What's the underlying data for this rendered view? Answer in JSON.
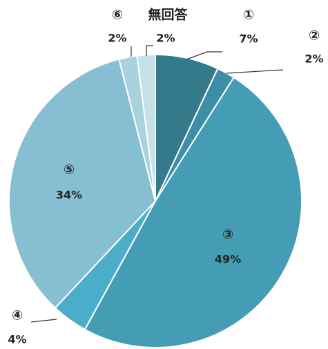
{
  "chart_data": {
    "type": "pie",
    "categories": [
      "①",
      "②",
      "③",
      "④",
      "⑤",
      "⑥",
      "無回答"
    ],
    "values": [
      7,
      2,
      49,
      4,
      34,
      2,
      2
    ],
    "value_labels": [
      "7%",
      "2%",
      "49%",
      "4%",
      "34%",
      "2%",
      "2%"
    ],
    "colors": [
      "#347a8a",
      "#3a8fa6",
      "#449db5",
      "#4aaecb",
      "#86bed2",
      "#a9d2de",
      "#c5e0e8"
    ]
  }
}
